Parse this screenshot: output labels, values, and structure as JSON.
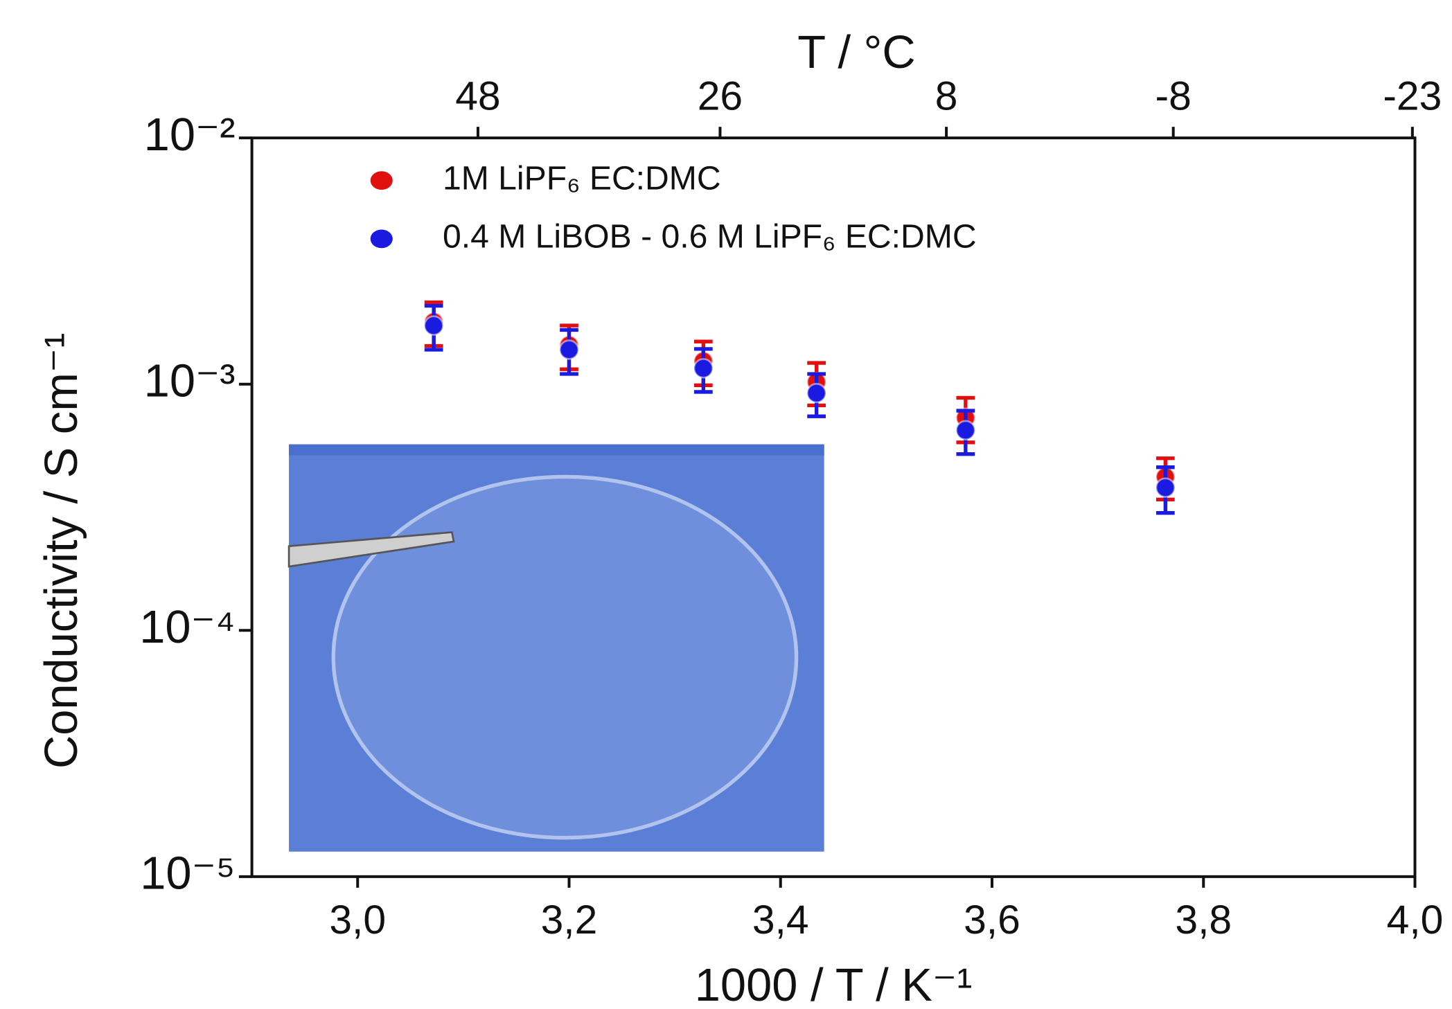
{
  "chart_data": {
    "type": "scatter",
    "x_label": "1000 / T / K⁻¹",
    "y_label": "Conductivity / S cm⁻¹",
    "x2_label": "T / °C",
    "x": [
      3.072,
      3.2,
      3.327,
      3.434,
      3.575,
      3.764
    ],
    "series": [
      {
        "name": "1M LiPF₆ EC:DMC",
        "color": "#e01010",
        "values": [
          0.00179,
          0.00144,
          0.00124,
          0.00102,
          0.00073,
          0.00042
        ],
        "errors": [
          0.00036,
          0.00029,
          0.00025,
          0.0002,
          0.00015,
          8e-05
        ]
      },
      {
        "name": "0.4 M LiBOB - 0.6 M LiPF₆ EC:DMC",
        "color": "#1a1ae0",
        "values": [
          0.00173,
          0.00138,
          0.00116,
          0.00092,
          0.00065,
          0.00038
        ],
        "errors": [
          0.00035,
          0.00028,
          0.00023,
          0.00018,
          0.00013,
          8e-05
        ]
      }
    ],
    "xlim": [
      2.9,
      4.0
    ],
    "xticks": [
      {
        "value": 3.0,
        "label": "3,0"
      },
      {
        "value": 3.2,
        "label": "3,2"
      },
      {
        "value": 3.4,
        "label": "3,4"
      },
      {
        "value": 3.6,
        "label": "3,6"
      },
      {
        "value": 3.8,
        "label": "3,8"
      },
      {
        "value": 4.0,
        "label": "4,0"
      }
    ],
    "ylim": [
      1e-05,
      0.01
    ],
    "yscale": "log",
    "yticks": [
      {
        "value": 0.01,
        "label": "10⁻²"
      },
      {
        "value": 0.001,
        "label": "10⁻³"
      },
      {
        "value": 0.0001,
        "label": "10⁻⁴"
      },
      {
        "value": 1e-05,
        "label": "10⁻⁵"
      }
    ],
    "x2ticks": [
      48,
      26,
      8,
      -8,
      -23
    ],
    "legend": "upper left"
  }
}
